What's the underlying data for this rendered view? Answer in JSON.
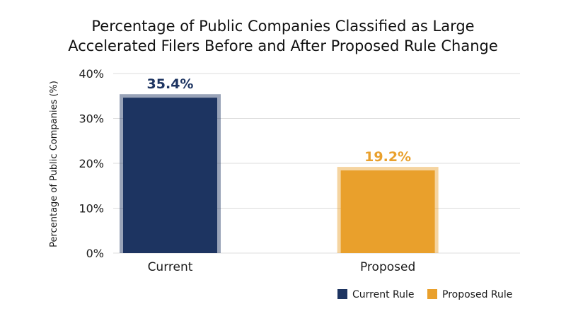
{
  "chart_data": {
    "type": "bar",
    "title": [
      "Percentage of Public Companies Classified as Large",
      "Accelerated Filers Before and After Proposed Rule Change"
    ],
    "xlabel": "",
    "ylabel": "Percentage of Public Companies (%)",
    "ylim": [
      0,
      40
    ],
    "yticks": [
      0,
      10,
      20,
      30,
      40
    ],
    "ytick_labels": [
      "0%",
      "10%",
      "20%",
      "30%",
      "40%"
    ],
    "categories": [
      "Current",
      "Proposed"
    ],
    "values": [
      35.4,
      19.2
    ],
    "data_labels": [
      "35.4%",
      "19.2%"
    ],
    "colors": [
      "#1d3461",
      "#e9a02c"
    ],
    "label_colors": [
      "#1d3461",
      "#e9a02c"
    ],
    "grid": true,
    "legend": {
      "placement": "bottom-right",
      "entries": [
        {
          "label": "Current Rule",
          "color": "#1d3461"
        },
        {
          "label": "Proposed Rule",
          "color": "#e9a02c"
        }
      ]
    }
  }
}
